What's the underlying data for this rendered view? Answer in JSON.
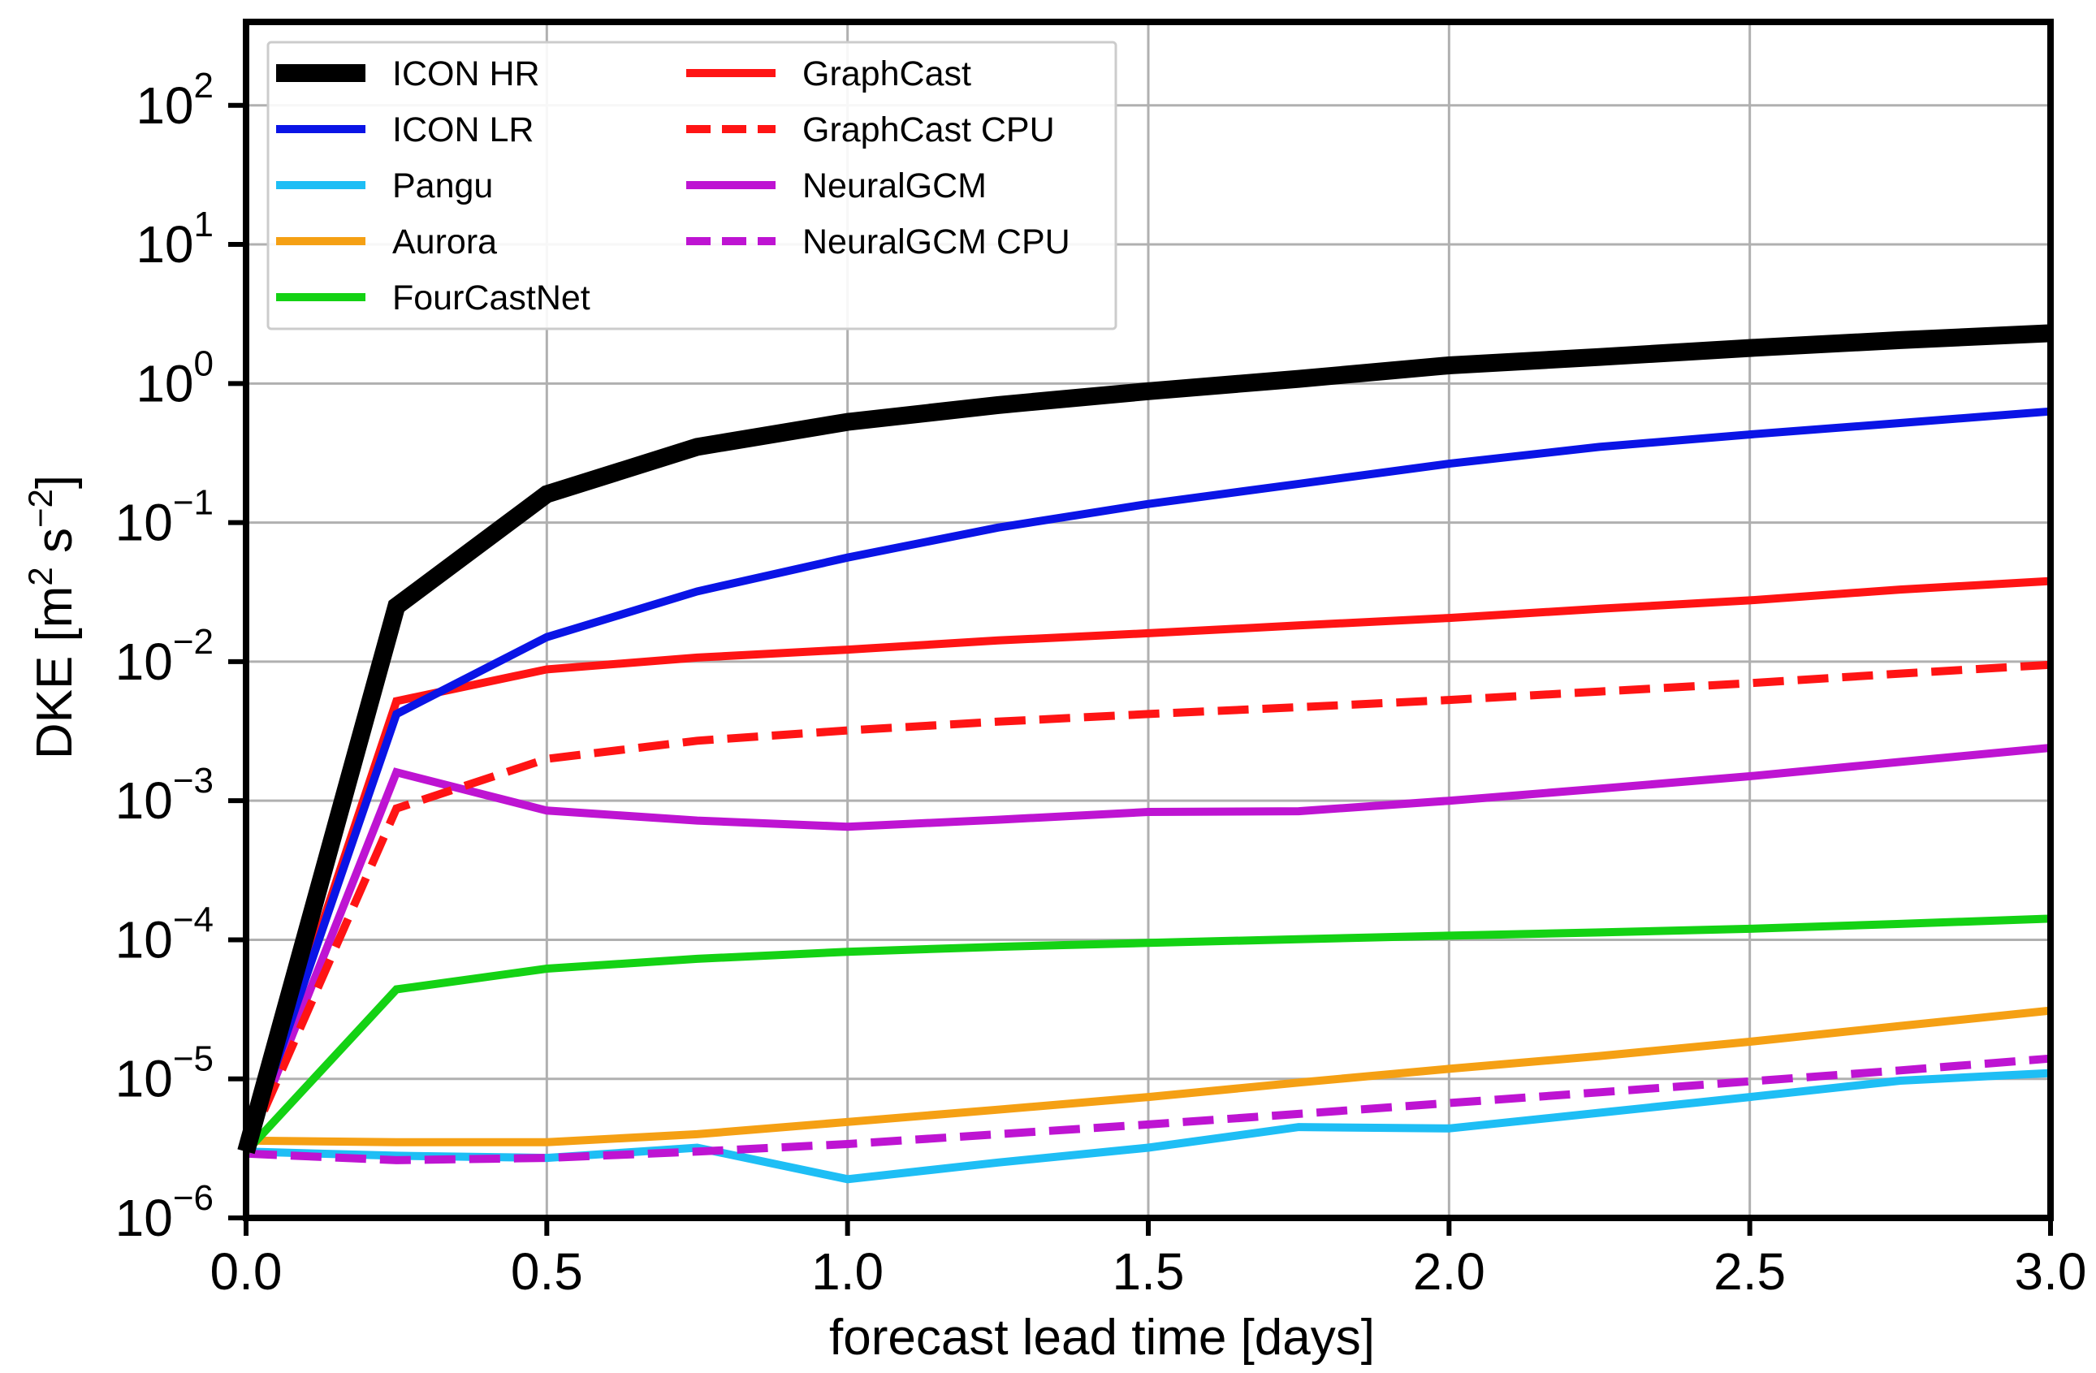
{
  "chart_data": {
    "type": "line",
    "title": "",
    "xlabel": "forecast lead time [days]",
    "ylabel_base": "DKE [m",
    "ylabel_sup1": "2",
    "ylabel_mid": " s",
    "ylabel_sup2": "−2",
    "ylabel_end": "]",
    "xlim": [
      0.0,
      3.0
    ],
    "ylim_log10": [
      -6,
      2.6
    ],
    "yscale": "log",
    "grid": true,
    "legend_position": "top-left",
    "x_ticks": [
      "0.0",
      "0.5",
      "1.0",
      "1.5",
      "2.0",
      "2.5",
      "3.0"
    ],
    "y_ticks": [
      {
        "base": "10",
        "exp": "−6",
        "value": -6
      },
      {
        "base": "10",
        "exp": "−5",
        "value": -5
      },
      {
        "base": "10",
        "exp": "−4",
        "value": -4
      },
      {
        "base": "10",
        "exp": "−3",
        "value": -3
      },
      {
        "base": "10",
        "exp": "−2",
        "value": -2
      },
      {
        "base": "10",
        "exp": "−1",
        "value": -1
      },
      {
        "base": "10",
        "exp": "0",
        "value": 0
      },
      {
        "base": "10",
        "exp": "1",
        "value": 1
      },
      {
        "base": "10",
        "exp": "2",
        "value": 2
      }
    ],
    "x": [
      0.0,
      0.25,
      0.5,
      0.75,
      1.0,
      1.25,
      1.5,
      1.75,
      2.0,
      2.25,
      2.5,
      2.75,
      3.0
    ],
    "series": [
      {
        "name": "ICON HR",
        "color": "#000000",
        "dash": "solid",
        "thick": true,
        "values": [
          3e-06,
          0.025,
          0.16,
          0.35,
          0.53,
          0.7,
          0.88,
          1.08,
          1.35,
          1.55,
          1.8,
          2.05,
          2.3
        ]
      },
      {
        "name": "ICON LR",
        "color": "#0a14e6",
        "dash": "solid",
        "thick": false,
        "values": [
          3e-06,
          0.0042,
          0.015,
          0.032,
          0.056,
          0.092,
          0.136,
          0.19,
          0.265,
          0.35,
          0.43,
          0.52,
          0.63
        ]
      },
      {
        "name": "Pangu",
        "color": "#1ebef5",
        "dash": "solid",
        "thick": false,
        "values": [
          3e-06,
          2.8e-06,
          2.7e-06,
          3.2e-06,
          1.9e-06,
          2.5e-06,
          3.2e-06,
          4.5e-06,
          4.4e-06,
          5.7e-06,
          7.4e-06,
          9.7e-06,
          1.1e-05
        ]
      },
      {
        "name": "Aurora",
        "color": "#f5a014",
        "dash": "solid",
        "thick": false,
        "values": [
          3.6e-06,
          3.5e-06,
          3.5e-06,
          4e-06,
          4.9e-06,
          6e-06,
          7.4e-06,
          9.4e-06,
          1.18e-05,
          1.46e-05,
          1.85e-05,
          2.4e-05,
          3.1e-05
        ]
      },
      {
        "name": "FourCastNet",
        "color": "#14d214",
        "dash": "solid",
        "thick": false,
        "values": [
          3e-06,
          4.4e-05,
          6.2e-05,
          7.3e-05,
          8.2e-05,
          8.9e-05,
          9.5e-05,
          0.000101,
          0.000107,
          0.000113,
          0.00012,
          0.00013,
          0.000142
        ]
      },
      {
        "name": "GraphCast",
        "color": "#ff1414",
        "dash": "solid",
        "thick": false,
        "values": [
          3e-06,
          0.0052,
          0.0088,
          0.0107,
          0.0122,
          0.0142,
          0.016,
          0.0182,
          0.0206,
          0.024,
          0.0276,
          0.033,
          0.038
        ]
      },
      {
        "name": "GraphCast CPU",
        "color": "#ff1414",
        "dash": "dashed",
        "thick": false,
        "values": [
          3e-06,
          0.00088,
          0.002,
          0.0027,
          0.0032,
          0.0037,
          0.0042,
          0.0047,
          0.0053,
          0.0061,
          0.007,
          0.0082,
          0.0095
        ]
      },
      {
        "name": "NeuralGCM",
        "color": "#be14d2",
        "dash": "solid",
        "thick": false,
        "values": [
          3e-06,
          0.0016,
          0.00085,
          0.00072,
          0.00065,
          0.00073,
          0.00083,
          0.00084,
          0.001,
          0.00122,
          0.0015,
          0.0019,
          0.0024
        ]
      },
      {
        "name": "NeuralGCM CPU",
        "color": "#be14d2",
        "dash": "dashed",
        "thick": false,
        "values": [
          2.9e-06,
          2.6e-06,
          2.7e-06,
          3e-06,
          3.4e-06,
          4e-06,
          4.7e-06,
          5.6e-06,
          6.7e-06,
          8e-06,
          9.6e-06,
          1.15e-05,
          1.4e-05
        ]
      }
    ],
    "legend_columns": [
      [
        "ICON HR",
        "ICON LR",
        "Pangu",
        "Aurora",
        "FourCastNet"
      ],
      [
        "GraphCast",
        "GraphCast CPU",
        "NeuralGCM",
        "NeuralGCM CPU"
      ]
    ]
  }
}
